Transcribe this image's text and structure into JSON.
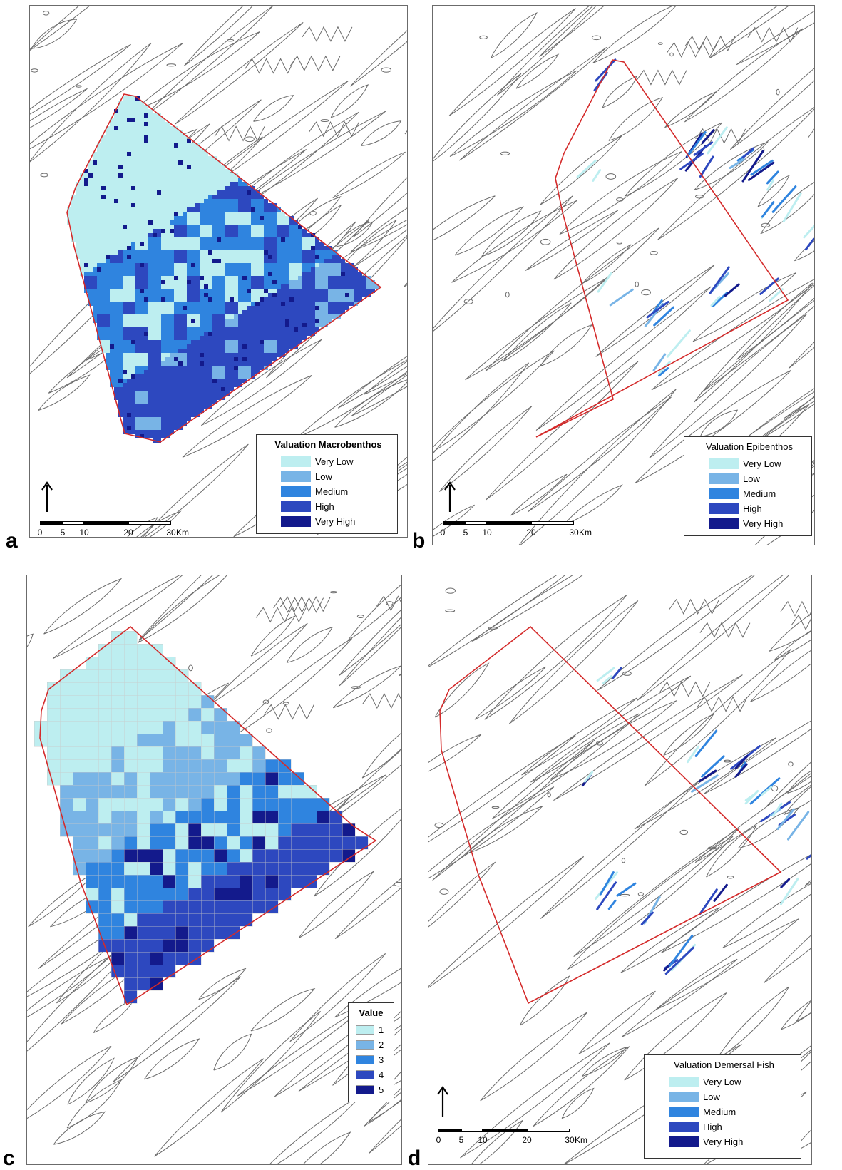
{
  "colors": {
    "very_low": "#bdeef0",
    "low": "#78b4e6",
    "medium": "#2f84df",
    "high": "#2d48bf",
    "very_high": "#131a8c",
    "study_area_outline": "#d42a2a",
    "contour": "#3a3a3a"
  },
  "panels": [
    {
      "letter": "a",
      "legend_title": "Valuation Macrobenthos",
      "legend_items": [
        "Very Low",
        "Low",
        "Medium",
        "High",
        "Very High"
      ],
      "scale_ticks": [
        "0",
        "5",
        "10",
        "20",
        "30"
      ],
      "scale_unit": "Km",
      "render": "raster"
    },
    {
      "letter": "b",
      "legend_title": "Valuation Epibenthos",
      "legend_items": [
        "Very Low",
        "Low",
        "Medium",
        "High",
        "Very High"
      ],
      "scale_ticks": [
        "0",
        "5",
        "10",
        "20",
        "30"
      ],
      "scale_unit": "Km",
      "render": "tracks"
    },
    {
      "letter": "c",
      "legend_title": "Value",
      "legend_items": [
        "1",
        "2",
        "3",
        "4",
        "5"
      ],
      "render": "grid"
    },
    {
      "letter": "d",
      "legend_title": "Valuation Demersal Fish",
      "legend_items": [
        "Very Low",
        "Low",
        "Medium",
        "High",
        "Very High"
      ],
      "scale_ticks": [
        "0",
        "5",
        "10",
        "20",
        "30"
      ],
      "scale_unit": "Km",
      "render": "tracks"
    }
  ]
}
